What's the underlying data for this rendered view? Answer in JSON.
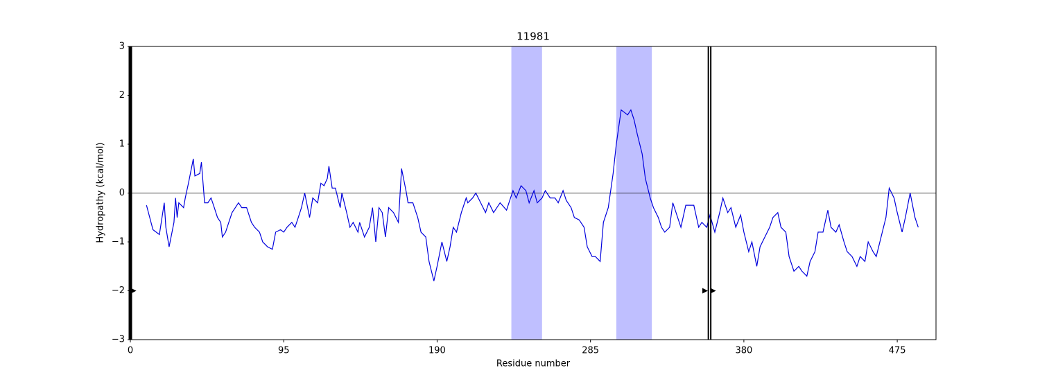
{
  "chart_data": {
    "type": "line",
    "title": "11981",
    "x_label": "Residue number",
    "y_label": "Hydropathy (kcal/mol)",
    "xlim": [
      0,
      499
    ],
    "ylim": [
      -3,
      3
    ],
    "xticks": [
      0,
      95,
      190,
      285,
      380,
      475
    ],
    "yticks": [
      {
        "value": -3,
        "label": "−3"
      },
      {
        "value": -2,
        "label": "−2"
      },
      {
        "value": -1,
        "label": "−1"
      },
      0,
      1,
      2,
      3
    ],
    "hline": 0,
    "shaded_regions": [
      [
        236,
        255
      ],
      [
        301,
        323
      ]
    ],
    "shade_color": "#bfbfff",
    "vlines": [
      0,
      358,
      359.5
    ],
    "markers": {
      "x": [
        2,
        356,
        361
      ],
      "y": [
        -2,
        -2,
        -2
      ]
    },
    "series": [
      {
        "name": "Hydropathy",
        "color": "#0000dd",
        "x": [
          10,
          14,
          18,
          21,
          22,
          24,
          27,
          28,
          29,
          30,
          33,
          34,
          36,
          39,
          40,
          43,
          44,
          46,
          48,
          50,
          52,
          54,
          56,
          57,
          59,
          61,
          63,
          65,
          67,
          69,
          72,
          75,
          77,
          80,
          82,
          85,
          88,
          90,
          93,
          95,
          97,
          100,
          102,
          104,
          106,
          108,
          111,
          113,
          116,
          118,
          120,
          122,
          123,
          125,
          127,
          130,
          131,
          134,
          136,
          138,
          141,
          142,
          145,
          148,
          150,
          152,
          154,
          156,
          158,
          160,
          163,
          166,
          168,
          171,
          172,
          175,
          178,
          180,
          183,
          185,
          188,
          190,
          193,
          196,
          198,
          200,
          202,
          205,
          208,
          209,
          212,
          214,
          217,
          220,
          222,
          225,
          227,
          229,
          233,
          235,
          237,
          239,
          242,
          245,
          247,
          250,
          252,
          255,
          257,
          260,
          263,
          265,
          268,
          270,
          273,
          275,
          278,
          281,
          283,
          286,
          288,
          291,
          293,
          296,
          299,
          301,
          304,
          306,
          308,
          310,
          312,
          314,
          317,
          319,
          322,
          324,
          327,
          329,
          331,
          334,
          336,
          339,
          341,
          344,
          347,
          349,
          352,
          354,
          357,
          359,
          362,
          365,
          367,
          370,
          372,
          375,
          378,
          380,
          383,
          385,
          388,
          390,
          393,
          396,
          398,
          401,
          403,
          406,
          408,
          411,
          414,
          416,
          419,
          421,
          424,
          426,
          429,
          432,
          434,
          437,
          439,
          442,
          444,
          447,
          450,
          452,
          455,
          457,
          460,
          462,
          465,
          468,
          470,
          473,
          475,
          478,
          480,
          483,
          486,
          488
        ],
        "values": [
          -0.25,
          -0.75,
          -0.85,
          -0.2,
          -0.7,
          -1.1,
          -0.6,
          -0.1,
          -0.5,
          -0.2,
          -0.3,
          -0.1,
          0.2,
          0.7,
          0.35,
          0.4,
          0.63,
          -0.2,
          -0.2,
          -0.1,
          -0.3,
          -0.5,
          -0.6,
          -0.9,
          -0.8,
          -0.6,
          -0.4,
          -0.3,
          -0.2,
          -0.3,
          -0.3,
          -0.6,
          -0.7,
          -0.8,
          -1.0,
          -1.1,
          -1.15,
          -0.8,
          -0.75,
          -0.8,
          -0.7,
          -0.6,
          -0.7,
          -0.5,
          -0.3,
          0,
          -0.5,
          -0.1,
          -0.2,
          0.2,
          0.15,
          0.3,
          0.55,
          0.1,
          0.1,
          -0.3,
          0,
          -0.4,
          -0.7,
          -0.6,
          -0.8,
          -0.6,
          -0.9,
          -0.7,
          -0.3,
          -1.0,
          -0.3,
          -0.4,
          -0.9,
          -0.3,
          -0.4,
          -0.6,
          0.5,
          0,
          -0.2,
          -0.2,
          -0.5,
          -0.8,
          -0.9,
          -1.4,
          -1.8,
          -1.5,
          -1.0,
          -1.4,
          -1.1,
          -0.7,
          -0.8,
          -0.4,
          -0.1,
          -0.2,
          -0.1,
          0,
          -0.2,
          -0.4,
          -0.2,
          -0.4,
          -0.3,
          -0.2,
          -0.35,
          -0.15,
          0.05,
          -0.1,
          0.15,
          0.05,
          -0.2,
          0.05,
          -0.2,
          -0.1,
          0.05,
          -0.1,
          -0.1,
          -0.2,
          0.05,
          -0.15,
          -0.3,
          -0.5,
          -0.55,
          -0.7,
          -1.1,
          -1.3,
          -1.3,
          -1.4,
          -0.6,
          -0.3,
          0.4,
          1.0,
          1.7,
          1.65,
          1.6,
          1.7,
          1.5,
          1.2,
          0.8,
          0.3,
          -0.1,
          -0.3,
          -0.5,
          -0.7,
          -0.8,
          -0.7,
          -0.2,
          -0.5,
          -0.7,
          -0.25,
          -0.25,
          -0.25,
          -0.7,
          -0.6,
          -0.7,
          -0.45,
          -0.8,
          -0.4,
          -0.1,
          -0.4,
          -0.3,
          -0.7,
          -0.45,
          -0.8,
          -1.2,
          -1.0,
          -1.5,
          -1.1,
          -0.9,
          -0.7,
          -0.5,
          -0.4,
          -0.7,
          -0.8,
          -1.3,
          -1.6,
          -1.5,
          -1.6,
          -1.7,
          -1.4,
          -1.2,
          -0.8,
          -0.8,
          -0.35,
          -0.7,
          -0.8,
          -0.65,
          -1.0,
          -1.2,
          -1.3,
          -1.5,
          -1.3,
          -1.4,
          -1.0,
          -1.2,
          -1.3,
          -0.9,
          -0.5,
          0.1,
          -0.1,
          -0.4,
          -0.8,
          -0.5,
          0,
          -0.5,
          -0.7
        ]
      }
    ]
  }
}
